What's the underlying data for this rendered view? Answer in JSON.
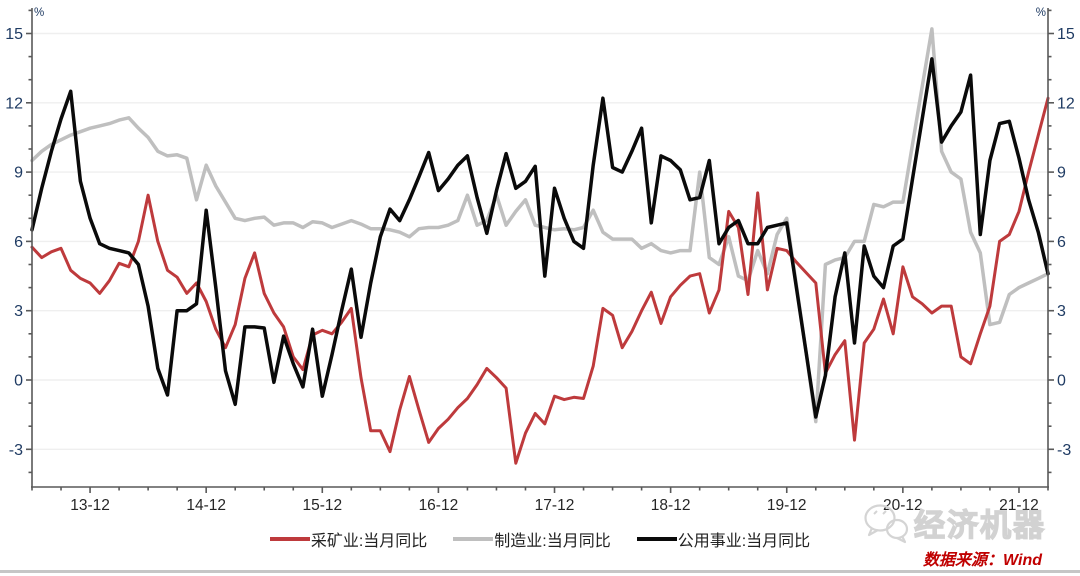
{
  "chart_data": {
    "type": "line",
    "title": "",
    "grid": "horizontal-only",
    "legend_position": "bottom-center",
    "y_axis": {
      "unit": "%",
      "major_ticks": [
        -3,
        0,
        3,
        6,
        9,
        12,
        15
      ],
      "minor_step": 1,
      "minor_min": -4,
      "minor_max": 16,
      "dual_axis": true
    },
    "x_axis": {
      "start_month": "2013-06",
      "end_month": "2022-03",
      "months_total": 106,
      "tick_labels": [
        "13-12",
        "14-12",
        "15-12",
        "16-12",
        "17-12",
        "18-12",
        "19-12",
        "20-12",
        "21-12"
      ],
      "tick_month_indices": [
        6,
        18,
        30,
        42,
        54,
        66,
        78,
        90,
        102
      ],
      "minor_tick_every_months": 3
    },
    "series": [
      {
        "name": "采矿业:当月同比",
        "color": "#be3a3c",
        "width": 3,
        "values": [
          5.75,
          5.3,
          5.55,
          5.7,
          4.75,
          4.4,
          4.2,
          3.75,
          4.3,
          5.05,
          4.9,
          6.0,
          8.0,
          6.0,
          4.75,
          4.45,
          3.75,
          4.2,
          3.4,
          2.2,
          1.4,
          2.4,
          4.4,
          5.5,
          3.75,
          2.9,
          2.3,
          1.0,
          0.45,
          1.95,
          2.15,
          2.0,
          2.5,
          3.1,
          0.1,
          -2.2,
          -2.2,
          -3.1,
          -1.3,
          0.15,
          -1.3,
          -2.7,
          -2.1,
          -1.7,
          -1.2,
          -0.8,
          -0.2,
          0.5,
          0.1,
          -0.35,
          -3.6,
          -2.3,
          -1.45,
          -1.9,
          -0.7,
          -0.85,
          -0.75,
          -0.8,
          0.6,
          3.1,
          2.8,
          1.4,
          2.1,
          3.0,
          3.8,
          2.45,
          3.6,
          4.1,
          4.5,
          4.6,
          2.9,
          3.9,
          7.3,
          6.6,
          3.7,
          8.1,
          3.9,
          5.7,
          5.6,
          5.1,
          4.65,
          4.2,
          0.3,
          1.1,
          1.7,
          -2.6,
          1.6,
          2.2,
          3.5,
          2.0,
          4.9,
          3.6,
          3.3,
          2.9,
          3.2,
          3.2,
          1.0,
          0.7,
          2.0,
          3.2,
          6.0,
          6.3,
          7.3,
          9.0,
          10.6,
          12.2
        ]
      },
      {
        "name": "制造业:当月同比",
        "color": "#bfbfbf",
        "width": 3.5,
        "values": [
          9.5,
          9.9,
          10.2,
          10.4,
          10.6,
          10.75,
          10.9,
          11.0,
          11.1,
          11.25,
          11.35,
          10.9,
          10.5,
          9.9,
          9.7,
          9.75,
          9.6,
          7.8,
          9.3,
          8.4,
          7.7,
          7.0,
          6.9,
          7.0,
          7.05,
          6.7,
          6.8,
          6.8,
          6.6,
          6.85,
          6.8,
          6.6,
          6.75,
          6.9,
          6.75,
          6.55,
          6.55,
          6.5,
          6.4,
          6.2,
          6.55,
          6.6,
          6.6,
          6.7,
          6.9,
          8.0,
          6.7,
          6.9,
          8.0,
          6.7,
          7.3,
          7.8,
          6.7,
          6.6,
          6.5,
          6.55,
          6.5,
          6.6,
          7.35,
          6.4,
          6.1,
          6.1,
          6.1,
          5.7,
          5.9,
          5.6,
          5.5,
          5.6,
          5.6,
          9.0,
          5.3,
          5.0,
          6.2,
          4.5,
          4.3,
          5.6,
          4.6,
          6.3,
          7.0,
          4.1,
          1.2,
          -1.8,
          5.0,
          5.2,
          5.3,
          6.0,
          6.0,
          7.6,
          7.5,
          7.7,
          7.7,
          10.2,
          12.7,
          15.2,
          9.9,
          9.0,
          8.7,
          6.4,
          5.5,
          2.4,
          2.5,
          3.7,
          4.0,
          4.2,
          4.4,
          4.6
        ]
      },
      {
        "name": "公用事业:当月同比",
        "color": "#0a0a0a",
        "width": 3.5,
        "values": [
          6.5,
          8.3,
          9.9,
          11.3,
          12.5,
          8.6,
          7.0,
          5.9,
          5.7,
          5.6,
          5.5,
          5.0,
          3.2,
          0.5,
          -0.65,
          3.0,
          3.0,
          3.3,
          7.35,
          4.0,
          0.4,
          -1.05,
          2.3,
          2.3,
          2.25,
          -0.1,
          1.9,
          0.7,
          -0.3,
          2.2,
          -0.7,
          1.1,
          3.0,
          4.8,
          1.85,
          4.2,
          6.2,
          7.4,
          6.9,
          7.8,
          8.8,
          9.85,
          8.2,
          8.7,
          9.3,
          9.7,
          7.9,
          6.35,
          8.2,
          9.8,
          8.3,
          8.6,
          9.25,
          4.5,
          8.3,
          7.0,
          6.0,
          5.7,
          9.3,
          12.2,
          9.2,
          9.0,
          9.9,
          10.9,
          6.8,
          9.7,
          9.5,
          9.1,
          7.8,
          7.9,
          9.5,
          5.9,
          6.6,
          6.9,
          5.9,
          5.9,
          6.6,
          6.7,
          6.8,
          4.0,
          1.2,
          -1.6,
          0.2,
          3.6,
          5.5,
          1.6,
          5.8,
          4.5,
          4.0,
          5.8,
          6.1,
          8.7,
          11.3,
          13.9,
          10.3,
          11.0,
          11.6,
          13.2,
          6.3,
          9.5,
          11.1,
          11.2,
          9.6,
          7.8,
          6.4,
          4.6
        ]
      }
    ]
  },
  "legend": {
    "items": [
      {
        "swatch_color": "#be3a3c"
      },
      {
        "swatch_color": "#bfbfbf"
      },
      {
        "swatch_color": "#0a0a0a"
      }
    ]
  },
  "watermark": {
    "brand": "经济机器",
    "icon": "wechat-bubbles-icon"
  },
  "source_note": "数据来源：Wind",
  "colors": {
    "axis": "#595959",
    "gridline": "#efefef",
    "y_label": "#1f3b63",
    "x_label": "#262626",
    "source_red": "#c00000",
    "watermark_gray": "#d2d2d2"
  }
}
